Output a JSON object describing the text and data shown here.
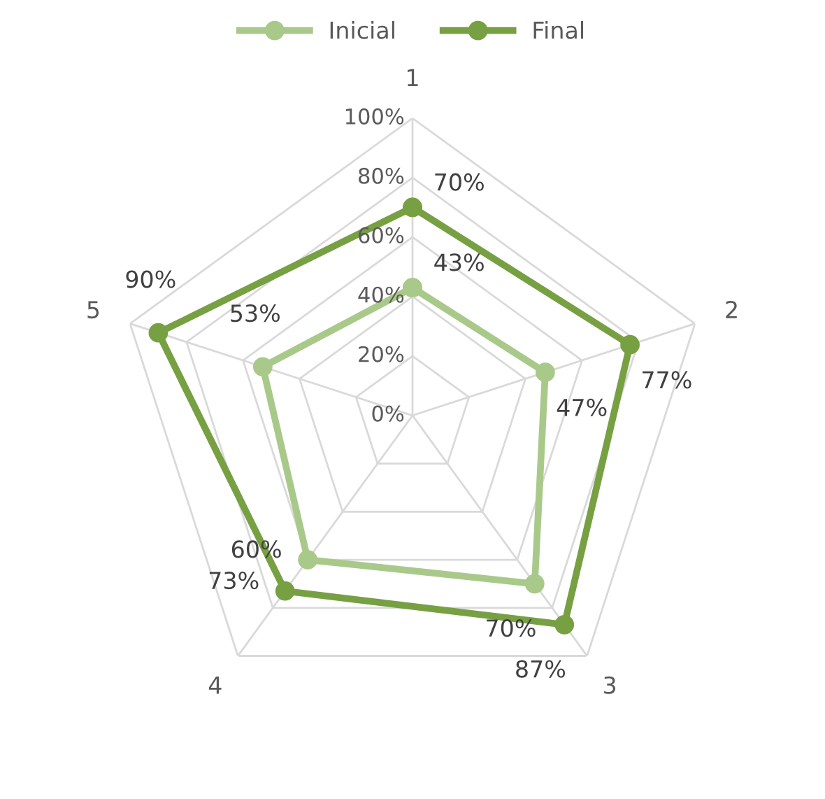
{
  "chart_data": {
    "type": "radar",
    "categories": [
      "1",
      "2",
      "3",
      "4",
      "5"
    ],
    "ylim": [
      0,
      100
    ],
    "yticks": [
      {
        "value": 0,
        "label": "0%"
      },
      {
        "value": 20,
        "label": "20%"
      },
      {
        "value": 40,
        "label": "40%"
      },
      {
        "value": 60,
        "label": "60%"
      },
      {
        "value": 80,
        "label": "80%"
      },
      {
        "value": 100,
        "label": "100%"
      }
    ],
    "series": [
      {
        "name": "Inicial",
        "color": "#a9c98a",
        "values": [
          43,
          47,
          70,
          60,
          53
        ],
        "value_labels": [
          "43%",
          "47%",
          "70%",
          "60%",
          "53%"
        ]
      },
      {
        "name": "Final",
        "color": "#77a043",
        "values": [
          70,
          77,
          87,
          73,
          90
        ],
        "value_labels": [
          "70%",
          "77%",
          "87%",
          "73%",
          "90%"
        ]
      }
    ],
    "grid": true,
    "legend": "top",
    "marker": "circle",
    "line_style": "solid"
  }
}
